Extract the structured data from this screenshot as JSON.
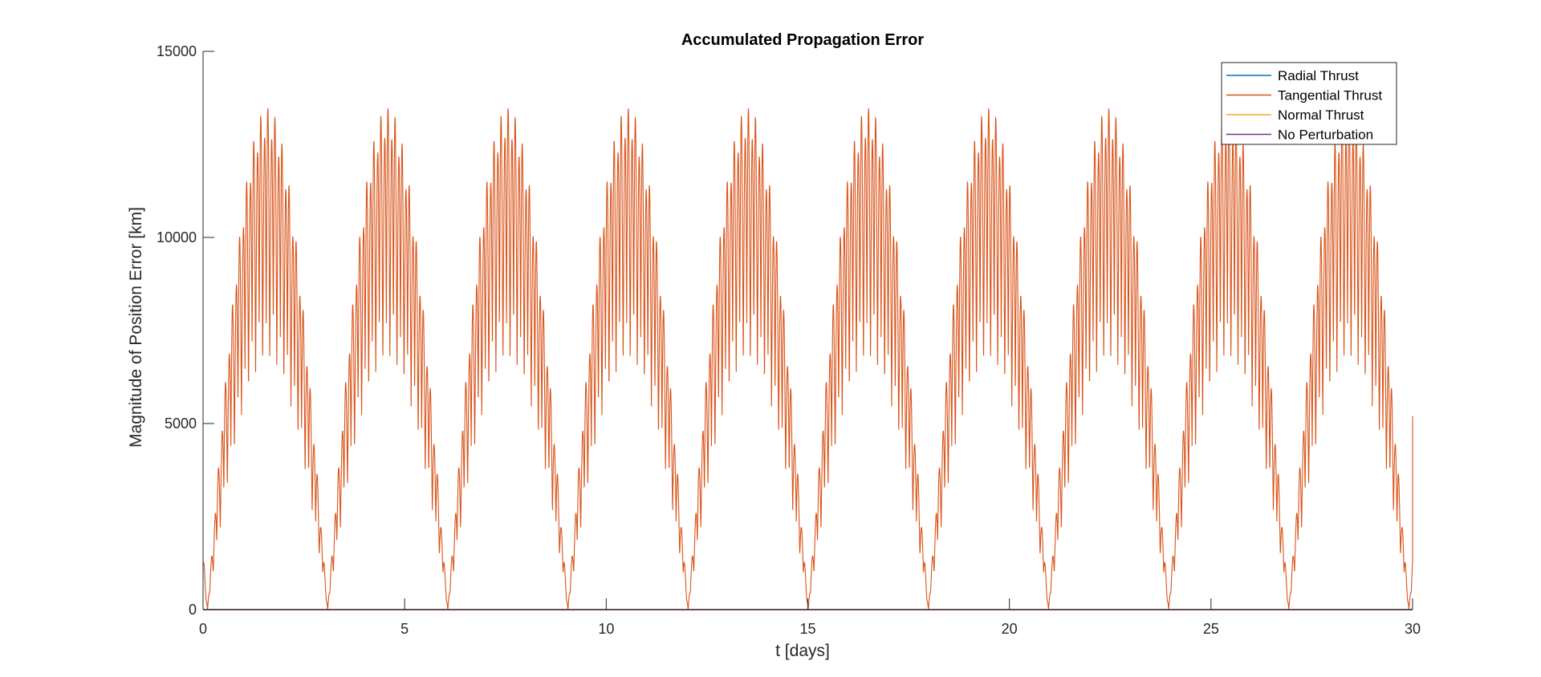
{
  "chart_data": {
    "type": "line",
    "title": "Accumulated Propagation Error",
    "xlabel": "t [days]",
    "ylabel": "Magnitude of Position Error [km]",
    "xlim": [
      0,
      30
    ],
    "ylim": [
      0,
      15000
    ],
    "xticks": [
      0,
      5,
      10,
      15,
      20,
      25,
      30
    ],
    "yticks": [
      0,
      5000,
      10000,
      15000
    ],
    "xtick_labels": [
      "0",
      "5",
      "10",
      "15",
      "20",
      "25",
      "30"
    ],
    "ytick_labels": [
      "0",
      "5000",
      "10000",
      "15000"
    ],
    "grid": false,
    "legend_position": "top-right",
    "series": [
      {
        "name": "Radial Thrust",
        "color": "#0072BD",
        "envelope": "zero",
        "values_description_note": null
      },
      {
        "name": "Tangential Thrust",
        "color": "#D95319",
        "envelope": "beat",
        "beat_period_days": 2.98,
        "first_peak_day": 1.6,
        "peak_value": 14000,
        "min_value": 0,
        "fast_oscillations_per_beat": 17,
        "end_value": 5200
      },
      {
        "name": "Normal Thrust",
        "color": "#EDB120",
        "envelope": "zero"
      },
      {
        "name": "No Perturbation",
        "color": "#7E2F8E",
        "envelope": "zero"
      }
    ]
  }
}
